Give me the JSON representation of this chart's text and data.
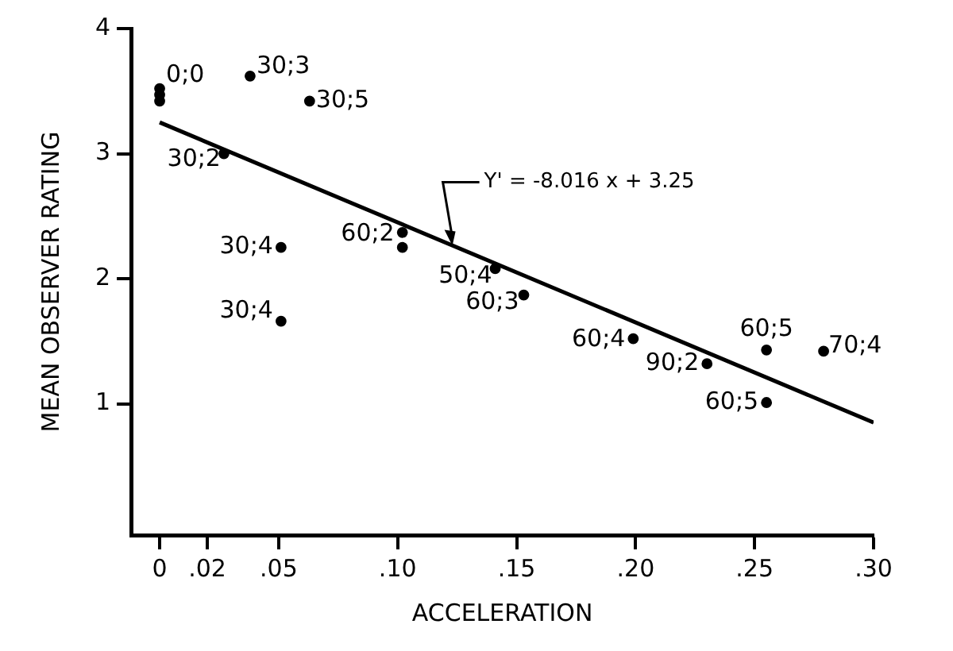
{
  "chart_data": {
    "type": "scatter",
    "xlabel": "ACCELERATION",
    "ylabel": "MEAN OBSERVER RATING",
    "xlim": [
      -0.012,
      0.3
    ],
    "ylim": [
      -0.05,
      4
    ],
    "xticks": [
      0,
      {
        "value": 0.02,
        "label": ".02"
      },
      {
        "value": 0.05,
        "label": ".05"
      },
      {
        "value": 0.1,
        "label": ".10"
      },
      {
        "value": 0.15,
        "label": ".15"
      },
      {
        "value": 0.2,
        "label": ".20"
      },
      {
        "value": 0.25,
        "label": ".25"
      },
      {
        "value": 0.3,
        "label": ".30"
      }
    ],
    "yticks": [
      1,
      2,
      3,
      4
    ],
    "grid": false,
    "legend": false,
    "marker": "circle",
    "series": [
      {
        "color": "#000000",
        "x": [
          0,
          0,
          0,
          0.038,
          0.063,
          0.027,
          0.051,
          0.051,
          0.102,
          0.102,
          0.141,
          0.153,
          0.199,
          0.23,
          0.255,
          0.255,
          0.279
        ],
        "values": [
          3.52,
          3.47,
          3.42,
          3.62,
          3.42,
          3.0,
          2.25,
          1.66,
          2.37,
          2.25,
          2.08,
          1.87,
          1.52,
          1.32,
          1.43,
          1.01,
          1.42
        ]
      },
      {
        "type": "line",
        "color": "#000000",
        "marker": "none",
        "x": [
          0,
          0.3
        ],
        "values": [
          3.25,
          0.85
        ]
      }
    ],
    "annotations": [
      {
        "text": "0;0",
        "x": 0,
        "y": 3.52
      },
      {
        "text": "30;3",
        "x": 0.038,
        "y": 3.62
      },
      {
        "text": "30;5",
        "x": 0.063,
        "y": 3.42
      },
      {
        "text": "30;2",
        "x": 0.027,
        "y": 3.0
      },
      {
        "text": "30;4",
        "x": 0.051,
        "y": 2.25
      },
      {
        "text": "30;4",
        "x": 0.051,
        "y": 1.66
      },
      {
        "text": "60;2",
        "x": 0.102,
        "y": 2.37
      },
      {
        "text": "50;4",
        "x": 0.141,
        "y": 2.08
      },
      {
        "text": "60;3",
        "x": 0.153,
        "y": 1.87
      },
      {
        "text": "60;4",
        "x": 0.199,
        "y": 1.52
      },
      {
        "text": "90;2",
        "x": 0.23,
        "y": 1.32
      },
      {
        "text": "60;5",
        "x": 0.255,
        "y": 1.43
      },
      {
        "text": "60;5",
        "x": 0.255,
        "y": 1.01
      },
      {
        "text": "70;4",
        "x": 0.279,
        "y": 1.42
      },
      {
        "text": "Y' = -8.016 x + 3.25",
        "x": 0.123,
        "y": 2.264
      }
    ]
  }
}
